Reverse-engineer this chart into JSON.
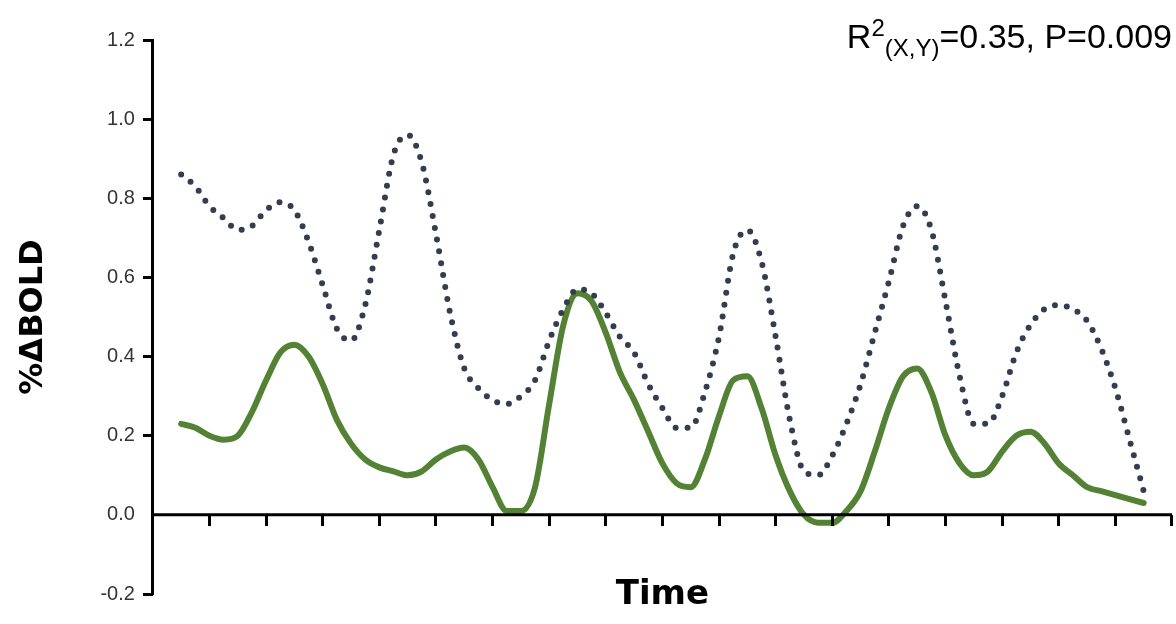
{
  "chart_data": {
    "type": "line",
    "xlabel": "Time",
    "ylabel": "%ΔBOLD",
    "annotations": [
      "R$^{2}$$_{(X,Y)}$=0.35, P=0.009"
    ],
    "categories": [
      null,
      null,
      null,
      null,
      null,
      null,
      null,
      null,
      null,
      null,
      null,
      null,
      null,
      null,
      null,
      null,
      null,
      null,
      null,
      null,
      null,
      null,
      null,
      null,
      null,
      null,
      null,
      null,
      null,
      null,
      null,
      null,
      null,
      null,
      null,
      null,
      null,
      null,
      null,
      null,
      null,
      null,
      null,
      null,
      null,
      null,
      null,
      null,
      null,
      null,
      null,
      null,
      null,
      null,
      null,
      null,
      null,
      null,
      null,
      null,
      null,
      null,
      null,
      null,
      null,
      null,
      null,
      null,
      null,
      null,
      null,
      null,
      null
    ],
    "series": [
      {
        "color": "#323e4f",
        "line_style": "dotted",
        "values": [
          null,
          null,
          0.86,
          0.83,
          0.78,
          0.75,
          0.72,
          0.73,
          0.77,
          0.79,
          0.77,
          0.69,
          0.58,
          0.47,
          0.44,
          0.53,
          0.72,
          0.91,
          0.96,
          0.89,
          0.71,
          0.51,
          0.37,
          0.32,
          0.29,
          0.28,
          0.3,
          0.34,
          0.44,
          0.52,
          0.57,
          0.56,
          0.51,
          0.45,
          0.41,
          0.33,
          0.27,
          0.22,
          0.22,
          0.31,
          0.45,
          0.66,
          0.72,
          0.64,
          0.45,
          0.24,
          0.11,
          0.1,
          0.15,
          0.23,
          0.33,
          0.46,
          0.59,
          0.73,
          0.78,
          0.72,
          0.54,
          0.35,
          0.23,
          0.23,
          0.3,
          0.41,
          0.48,
          0.52,
          0.53,
          0.52,
          0.49,
          0.42,
          0.32,
          0.19,
          0.06,
          null,
          null
        ]
      },
      {
        "color": "#548235",
        "line_style": "solid",
        "values": [
          null,
          null,
          0.23,
          0.22,
          0.2,
          0.19,
          0.2,
          0.26,
          0.34,
          0.41,
          0.43,
          0.4,
          0.33,
          0.24,
          0.18,
          0.14,
          0.12,
          0.11,
          0.1,
          0.11,
          0.14,
          0.16,
          0.17,
          0.14,
          0.07,
          0.01,
          0.01,
          0.07,
          0.28,
          0.48,
          0.56,
          0.54,
          0.46,
          0.36,
          0.29,
          0.21,
          0.13,
          0.08,
          0.07,
          0.14,
          0.25,
          0.34,
          0.35,
          0.27,
          0.15,
          0.06,
          0.0,
          -0.02,
          -0.02,
          0.01,
          0.06,
          0.16,
          0.27,
          0.35,
          0.37,
          0.31,
          0.2,
          0.13,
          0.1,
          0.11,
          0.16,
          0.2,
          0.21,
          0.18,
          0.13,
          0.1,
          0.07,
          0.06,
          0.05,
          0.04,
          0.03,
          null,
          null
        ]
      }
    ],
    "ylim": [
      -0.2,
      1.2
    ],
    "yticks": [
      {
        "value": -0.2,
        "label": "-0.2"
      },
      {
        "value": 0,
        "label": "0.0"
      },
      {
        "value": 0.2,
        "label": "0.2"
      },
      {
        "value": 0.4,
        "label": "0.4"
      },
      {
        "value": 0.6,
        "label": "0.6"
      },
      {
        "value": 0.8,
        "label": "0.8"
      },
      {
        "value": 1,
        "label": "1.0"
      },
      {
        "value": 1.2,
        "label": "1.2"
      }
    ],
    "ref_lines": [
      {
        "axis": "y",
        "value": 0,
        "color": "#000000",
        "line_style": "solid"
      }
    ],
    "tick_labels": "y",
    "grid": false,
    "legend": false,
    "marker": "none"
  }
}
